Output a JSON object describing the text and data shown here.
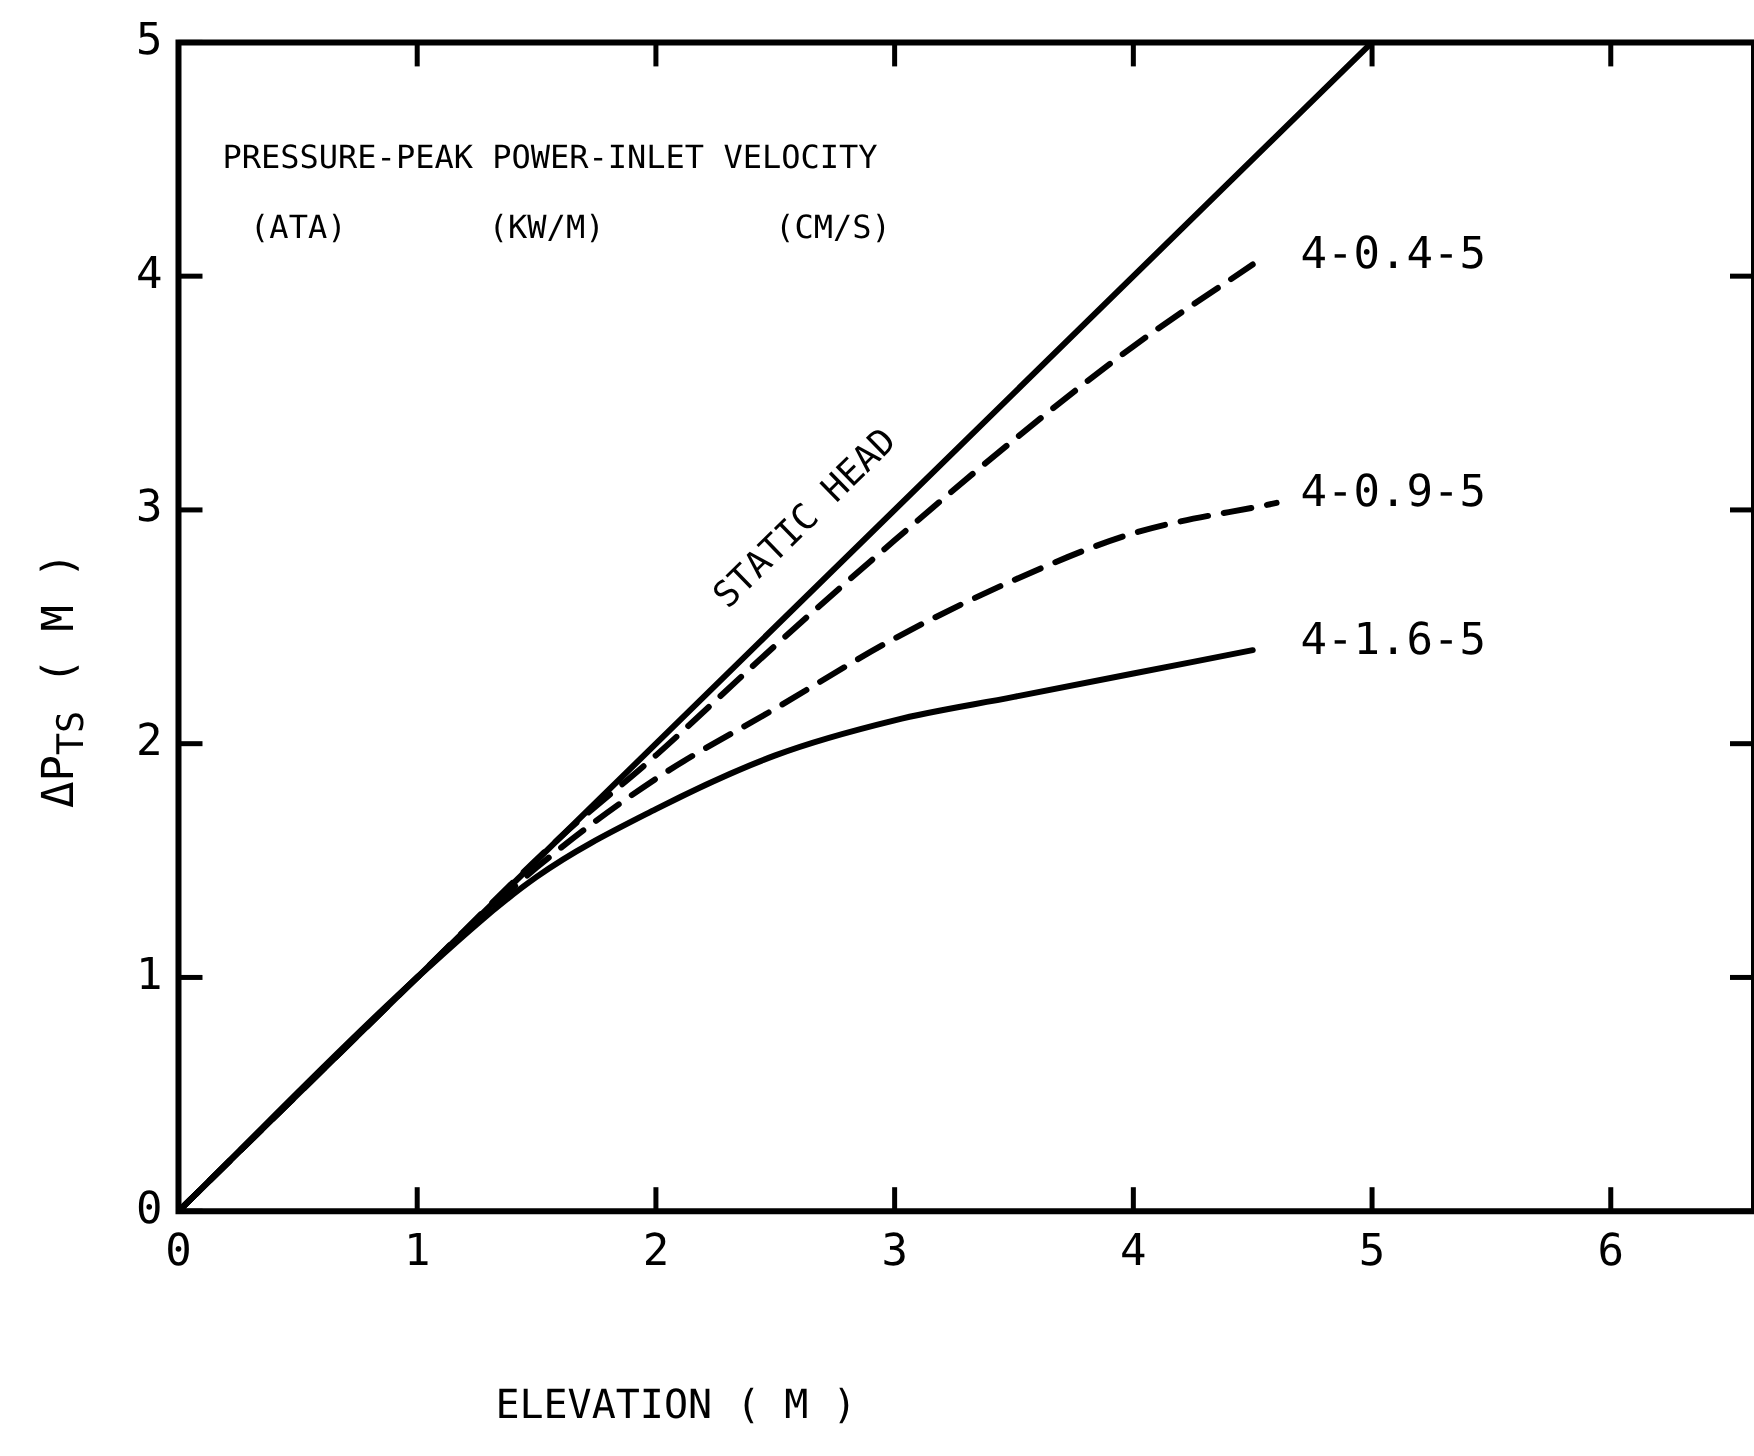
{
  "chart_data": {
    "type": "line",
    "xlabel": "ELEVATION ( M )",
    "ylabel": "ΔP$_{TS}$ ( M )",
    "annotations": [
      "PRESSURE-PEAK POWER-INLET VELOCITY",
      "(ATA)",
      "(KW/M)",
      "(CM/S)"
    ],
    "xlim": [
      0,
      6.6
    ],
    "ylim": [
      0,
      5
    ],
    "xticks": [
      0,
      1,
      2,
      3,
      4,
      5,
      6
    ],
    "yticks": [
      0,
      1,
      2,
      3,
      4,
      5
    ],
    "grid": false,
    "legend": false,
    "marker": "none",
    "series": [
      {
        "name": "STATIC HEAD",
        "color": "#000000",
        "line_style": "solid",
        "x": [
          0,
          5
        ],
        "values": [
          0,
          5
        ]
      },
      {
        "name": "4-0.4-5",
        "color": "#000000",
        "line_style": "dashed",
        "x": [
          0,
          1,
          1.6,
          2,
          2.5,
          3,
          3.5,
          4,
          4.5
        ],
        "values": [
          0,
          1,
          1.6,
          1.95,
          2.42,
          2.87,
          3.3,
          3.7,
          4.05
        ]
      },
      {
        "name": "4-0.9-5",
        "color": "#000000",
        "line_style": "dashed",
        "x": [
          0,
          1,
          1.5,
          2,
          2.5,
          3,
          3.5,
          4,
          4.6
        ],
        "values": [
          0,
          1,
          1.47,
          1.85,
          2.15,
          2.45,
          2.7,
          2.9,
          3.03
        ]
      },
      {
        "name": "4-1.6-5",
        "color": "#000000",
        "line_style": "solid",
        "x": [
          0,
          1,
          1.5,
          2,
          2.5,
          3,
          3.5,
          4,
          4.5
        ],
        "values": [
          0,
          1,
          1.43,
          1.72,
          1.95,
          2.1,
          2.2,
          2.3,
          2.4
        ]
      }
    ]
  }
}
